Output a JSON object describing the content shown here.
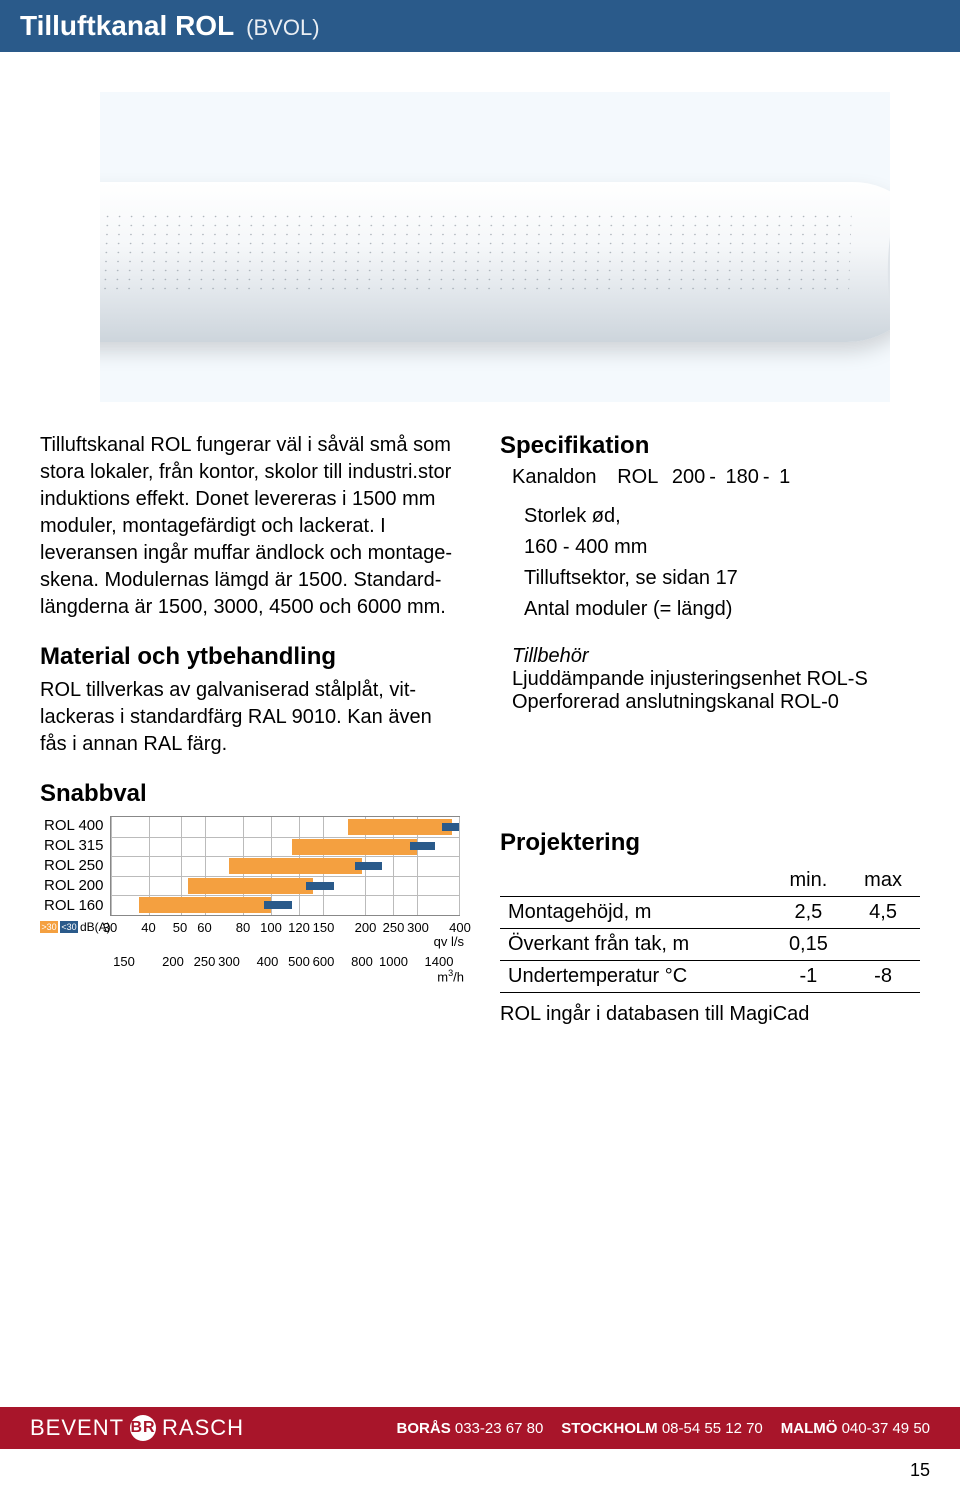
{
  "header": {
    "title": "Tilluftkanal ROL",
    "subtitle": "(BVOL)",
    "bg_color": "#2a5a8a",
    "text_color": "#ffffff"
  },
  "intro": {
    "text": "Tilluftskanal ROL fungerar väl i såväl små som stora lokaler, från kontor, skolor till industri.stor induktions effekt. Donet levereras i 1500 mm moduler, montagefärdigt och lackerat. I leveransen ingår muffar ändlock och montage-skena. Modulernas lämgd är 1500. Standard-längderna är 1500, 3000, 4500 och 6000 mm."
  },
  "material": {
    "heading": "Material och ytbehandling",
    "text": "ROL tillverkas av galvaniserad stålplåt, vit-lackeras i standardfärg RAL 9010. Kan även fås i annan RAL färg."
  },
  "snabbval": {
    "heading": "Snabbval",
    "rows": [
      "ROL 400",
      "ROL 315",
      "ROL 250",
      "ROL 200",
      "ROL 160"
    ],
    "x_log_ticks_pct": [
      0,
      11,
      20,
      27,
      38,
      46,
      54,
      61,
      73,
      81,
      88,
      100
    ],
    "x_labels_top": [
      "30",
      "40",
      "50",
      "60",
      "80",
      "100",
      "120",
      "150",
      "200",
      "250",
      "300",
      "400"
    ],
    "x_labels_bottom": [
      "150",
      "200",
      "250",
      "300",
      "400",
      "500",
      "600",
      "800",
      "1000",
      "1400"
    ],
    "x_labels_bottom_pct": [
      4,
      18,
      27,
      34,
      45,
      54,
      61,
      72,
      81,
      94
    ],
    "unit_top": "qv l/s",
    "unit_bottom": "m³/h",
    "bars_orange": [
      {
        "row": 0,
        "start_pct": 68,
        "end_pct": 98
      },
      {
        "row": 1,
        "start_pct": 52,
        "end_pct": 88
      },
      {
        "row": 2,
        "start_pct": 34,
        "end_pct": 72
      },
      {
        "row": 3,
        "start_pct": 22,
        "end_pct": 58
      },
      {
        "row": 4,
        "start_pct": 8,
        "end_pct": 46
      }
    ],
    "bars_blue": [
      {
        "row": 0,
        "start_pct": 95,
        "end_pct": 100
      },
      {
        "row": 1,
        "start_pct": 86,
        "end_pct": 93
      },
      {
        "row": 2,
        "start_pct": 70,
        "end_pct": 78
      },
      {
        "row": 3,
        "start_pct": 56,
        "end_pct": 64
      },
      {
        "row": 4,
        "start_pct": 44,
        "end_pct": 52
      }
    ],
    "legend": {
      "orange_label": ">30",
      "blue_label": "<30",
      "suffix": "dB(A)",
      "orange_color": "#f4a040",
      "blue_color": "#2a5a8a"
    }
  },
  "specifikation": {
    "heading": "Specifikation",
    "code_label": "Kanaldon",
    "code_parts": [
      "ROL",
      "200",
      "180",
      "1"
    ],
    "code_sep": " - ",
    "desc": [
      {
        "text1": "Storlek ød,",
        "text2": "160 - 400 mm"
      },
      {
        "text1": "Tilluftsektor, se sidan 17"
      },
      {
        "text1": "Antal moduler (= längd)"
      }
    ],
    "tillbehor_label": "Tillbehör",
    "tillbehor_lines": [
      "Ljuddämpande injusteringsenhet ROL-S",
      "Operforerad anslutningskanal ROL-0"
    ]
  },
  "projektering": {
    "heading": "Projektering",
    "columns": [
      "",
      "min.",
      "max"
    ],
    "rows": [
      [
        "Montagehöjd, m",
        "2,5",
        "4,5"
      ],
      [
        "Överkant från tak, m",
        "0,15",
        ""
      ],
      [
        "Undertemperatur °C",
        "-1",
        "-8"
      ]
    ],
    "note": "ROL ingår i databasen till MagiCad"
  },
  "footer": {
    "bg_color": "#a8152a",
    "brand1": "BEVENT",
    "brand2": "RASCH",
    "contacts": [
      {
        "city": "BORÅS",
        "phone": "033-23 67 80"
      },
      {
        "city": "STOCKHOLM",
        "phone": "08-54 55 12 70"
      },
      {
        "city": "MALMÖ",
        "phone": "040-37 49 50"
      }
    ]
  },
  "page_number": "15"
}
